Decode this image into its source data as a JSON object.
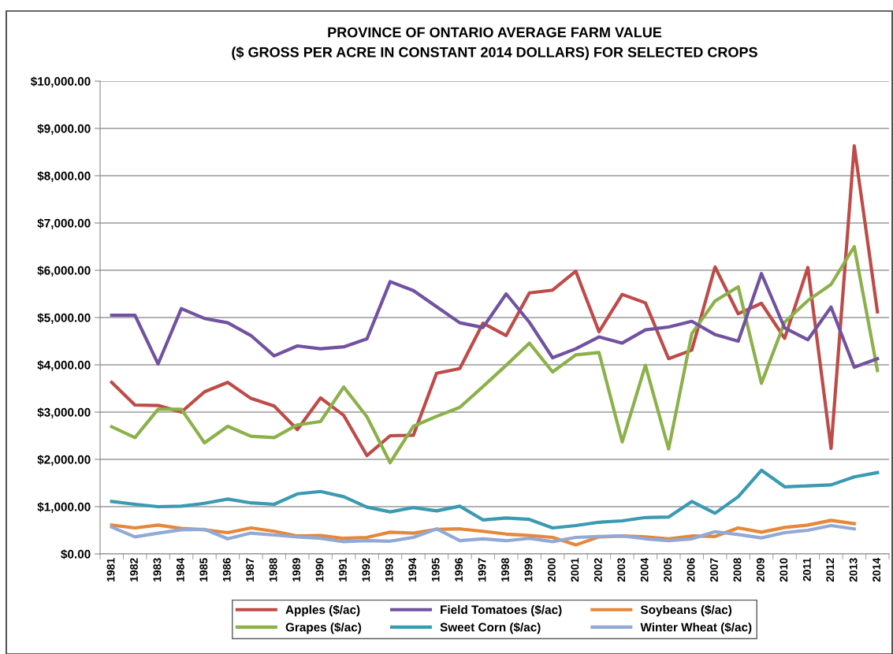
{
  "chart_data": {
    "type": "line",
    "title": "PROVINCE OF ONTARIO AVERAGE FARM VALUE\n($ GROSS PER ACRE IN CONSTANT 2014 DOLLARS) FOR SELECTED CROPS",
    "categories": [
      "1981",
      "1982",
      "1983",
      "1984",
      "1985",
      "1986",
      "1987",
      "1988",
      "1989",
      "1990",
      "1991",
      "1992",
      "1993",
      "1994",
      "1995",
      "1996",
      "1997",
      "1998",
      "1999",
      "2000",
      "2001",
      "2002",
      "2003",
      "2004",
      "2005",
      "2006",
      "2007",
      "2008",
      "2009",
      "2010",
      "2011",
      "2012",
      "2013",
      "2014"
    ],
    "series": [
      {
        "name": "Apples ($/ac)",
        "color": "#be4b48",
        "values": [
          3630,
          3150,
          3140,
          3000,
          3430,
          3630,
          3290,
          3130,
          2630,
          3300,
          2930,
          2080,
          2500,
          2510,
          3820,
          3920,
          4880,
          4620,
          5520,
          5580,
          5980,
          4700,
          5490,
          5310,
          4130,
          4310,
          6070,
          5080,
          5300,
          4560,
          6060,
          2230,
          8630,
          5120
        ]
      },
      {
        "name": "Grapes ($/ac)",
        "color": "#8cb04a",
        "values": [
          2690,
          2460,
          3060,
          3060,
          2350,
          2700,
          2490,
          2460,
          2730,
          2800,
          3530,
          2900,
          1930,
          2700,
          2910,
          3100,
          3540,
          3990,
          4460,
          3850,
          4210,
          4260,
          2370,
          3990,
          2220,
          4660,
          5350,
          5650,
          3610,
          4900,
          5360,
          5700,
          6500,
          3880
        ]
      },
      {
        "name": "Field Tomatoes ($/ac)",
        "color": "#7152a0",
        "values": [
          5050,
          5050,
          4020,
          5190,
          4980,
          4890,
          4620,
          4190,
          4400,
          4340,
          4380,
          4550,
          5760,
          5570,
          5230,
          4890,
          4790,
          5500,
          4900,
          4150,
          4340,
          4590,
          4460,
          4740,
          4800,
          4920,
          4640,
          4500,
          5930,
          4780,
          4530,
          5220,
          3950,
          4130
        ]
      },
      {
        "name": "Sweet Corn ($/ac)",
        "color": "#3a9ab2",
        "values": [
          1110,
          1050,
          1000,
          1010,
          1070,
          1160,
          1080,
          1050,
          1270,
          1320,
          1210,
          990,
          890,
          980,
          910,
          1010,
          720,
          760,
          730,
          550,
          600,
          670,
          700,
          770,
          780,
          1110,
          860,
          1210,
          1770,
          1420,
          1440,
          1460,
          1630,
          1720
        ]
      },
      {
        "name": "Soybeans ($/ac)",
        "color": "#e6873a",
        "values": [
          610,
          550,
          610,
          540,
          510,
          450,
          550,
          480,
          380,
          390,
          330,
          350,
          460,
          440,
          520,
          530,
          480,
          420,
          390,
          350,
          190,
          360,
          380,
          360,
          320,
          380,
          370,
          550,
          460,
          560,
          610,
          710,
          640,
          null
        ]
      },
      {
        "name": "Winter Wheat ($/ac)",
        "color": "#91a9d6",
        "values": [
          570,
          360,
          440,
          510,
          520,
          320,
          440,
          400,
          360,
          330,
          260,
          280,
          270,
          350,
          530,
          280,
          320,
          280,
          330,
          260,
          350,
          370,
          380,
          320,
          280,
          320,
          470,
          410,
          340,
          450,
          500,
          600,
          530,
          null
        ]
      }
    ],
    "ylim": [
      0,
      10000
    ],
    "yticks": [
      {
        "value": 0,
        "label": "$0.00"
      },
      {
        "value": 1000,
        "label": "$1,000.00"
      },
      {
        "value": 2000,
        "label": "$2,000.00"
      },
      {
        "value": 3000,
        "label": "$3,000.00"
      },
      {
        "value": 4000,
        "label": "$4,000.00"
      },
      {
        "value": 5000,
        "label": "$5,000.00"
      },
      {
        "value": 6000,
        "label": "$6,000.00"
      },
      {
        "value": 7000,
        "label": "$7,000.00"
      },
      {
        "value": 8000,
        "label": "$8,000.00"
      },
      {
        "value": 9000,
        "label": "$9,000.00"
      },
      {
        "value": 10000,
        "label": "$10,000.00"
      }
    ],
    "grid": "y",
    "legend": "bottom",
    "marker": "none",
    "line_style": "solid"
  }
}
